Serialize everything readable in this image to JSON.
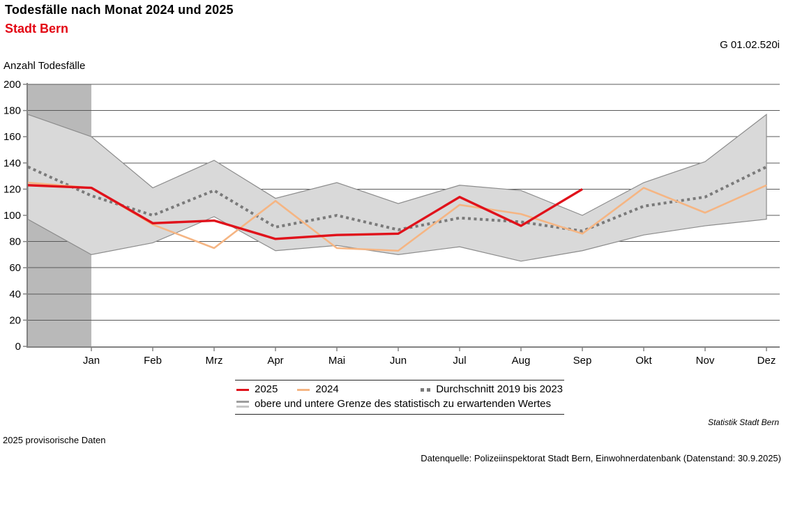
{
  "header": {
    "title": "Todesfälle nach Monat 2024 und 2025",
    "subtitle": "Stadt Bern",
    "reference": "G 01.02.520i"
  },
  "chart_data": {
    "type": "line",
    "title": "Todesfälle nach Monat 2024 und 2025",
    "subtitle": "Stadt Bern",
    "ylabel": "Anzahl Todesfälle",
    "ylim": [
      0,
      200
    ],
    "ytick_step": 20,
    "grid": true,
    "legend_position": "bottom",
    "categories": [
      "",
      "Jan",
      "Feb",
      "Mrz",
      "Apr",
      "Mai",
      "Jun",
      "Jul",
      "Aug",
      "Sep",
      "Okt",
      "Nov",
      "Dez"
    ],
    "series": [
      {
        "name": "2025",
        "type": "line",
        "values": [
          123,
          121,
          94,
          96,
          82,
          85,
          86,
          114,
          92,
          120,
          null,
          null,
          null
        ]
      },
      {
        "name": "2024",
        "type": "line",
        "values": [
          125,
          121,
          93,
          75,
          111,
          75,
          73,
          108,
          101,
          86,
          121,
          102,
          123
        ]
      },
      {
        "name": "Durchschnitt 2019 bis 2023",
        "type": "dotted-line",
        "values": [
          137,
          115,
          100,
          119,
          91,
          100,
          89,
          98,
          95,
          88,
          107,
          114,
          137
        ]
      },
      {
        "name": "obere Grenze des statistisch zu erwartenden Wertes",
        "type": "band-upper",
        "values": [
          177,
          160,
          121,
          142,
          113,
          125,
          109,
          123,
          119,
          100,
          125,
          141,
          177
        ]
      },
      {
        "name": "untere Grenze des statistisch zu erwartenden Wertes",
        "type": "band-lower",
        "values": [
          97,
          70,
          79,
          99,
          73,
          77,
          70,
          76,
          65,
          73,
          85,
          92,
          97
        ]
      }
    ],
    "highlighted_region": {
      "from_index": 0,
      "to_index": 1
    }
  },
  "legend": {
    "items": [
      {
        "label": "2025"
      },
      {
        "label": "2024"
      },
      {
        "label": "Durchschnitt 2019 bis 2023"
      },
      {
        "label": "obere und untere Grenze des statistisch zu erwartenden Wertes"
      }
    ]
  },
  "footer": {
    "branding": "Statistik Stadt Bern",
    "provisional_note": "2025 provisorische Daten",
    "source": "Datenquelle: Polizeiinspektorat Stadt Bern, Einwohnerdatenbank (Datenstand: 30.9.2025)"
  },
  "colors": {
    "line_2025": "#e0121b",
    "line_2024": "#f5b583",
    "average": "#7a7a7a",
    "band_fill": "#d9d9d9",
    "band_edge": "#8c8c8c",
    "highlight_column": "#b9b9b9",
    "gridline": "#595959",
    "axis": "#828282",
    "subtitle_red": "#e30613",
    "text": "#000000"
  }
}
